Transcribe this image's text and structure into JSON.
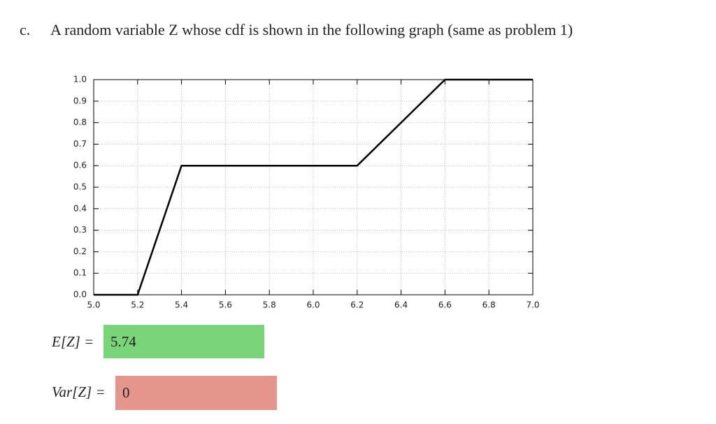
{
  "label": "c.",
  "question": "A random variable Z whose cdf is shown in the following graph (same as problem 1)",
  "chart_data": {
    "type": "line",
    "x": [
      5.0,
      5.2,
      5.4,
      6.2,
      6.6,
      7.0
    ],
    "series": [
      {
        "color": "#000000",
        "values": [
          0,
          0,
          0.6,
          0.6,
          1.0,
          1.0
        ]
      }
    ],
    "xlim": [
      5,
      7
    ],
    "ylim": [
      0,
      1
    ],
    "xticks": [
      {
        "value": 5,
        "label": "5.0"
      },
      5.2,
      5.4,
      5.6,
      5.8,
      {
        "value": 6,
        "label": "6.0"
      },
      6.2,
      6.4,
      6.6,
      6.8,
      {
        "value": 7,
        "label": "7.0"
      }
    ],
    "yticks": [
      {
        "value": 0,
        "label": "0.0"
      },
      0.1,
      0.2,
      0.3,
      0.4,
      0.5,
      0.6,
      0.7,
      0.8,
      0.9,
      {
        "value": 1,
        "label": "1.0"
      }
    ],
    "grid": true
  },
  "answers": [
    {
      "label": "E[Z] =",
      "value": 5.74,
      "status": "correct"
    },
    {
      "label": "Var[Z] =",
      "value": 0,
      "status": "incorrect"
    }
  ]
}
